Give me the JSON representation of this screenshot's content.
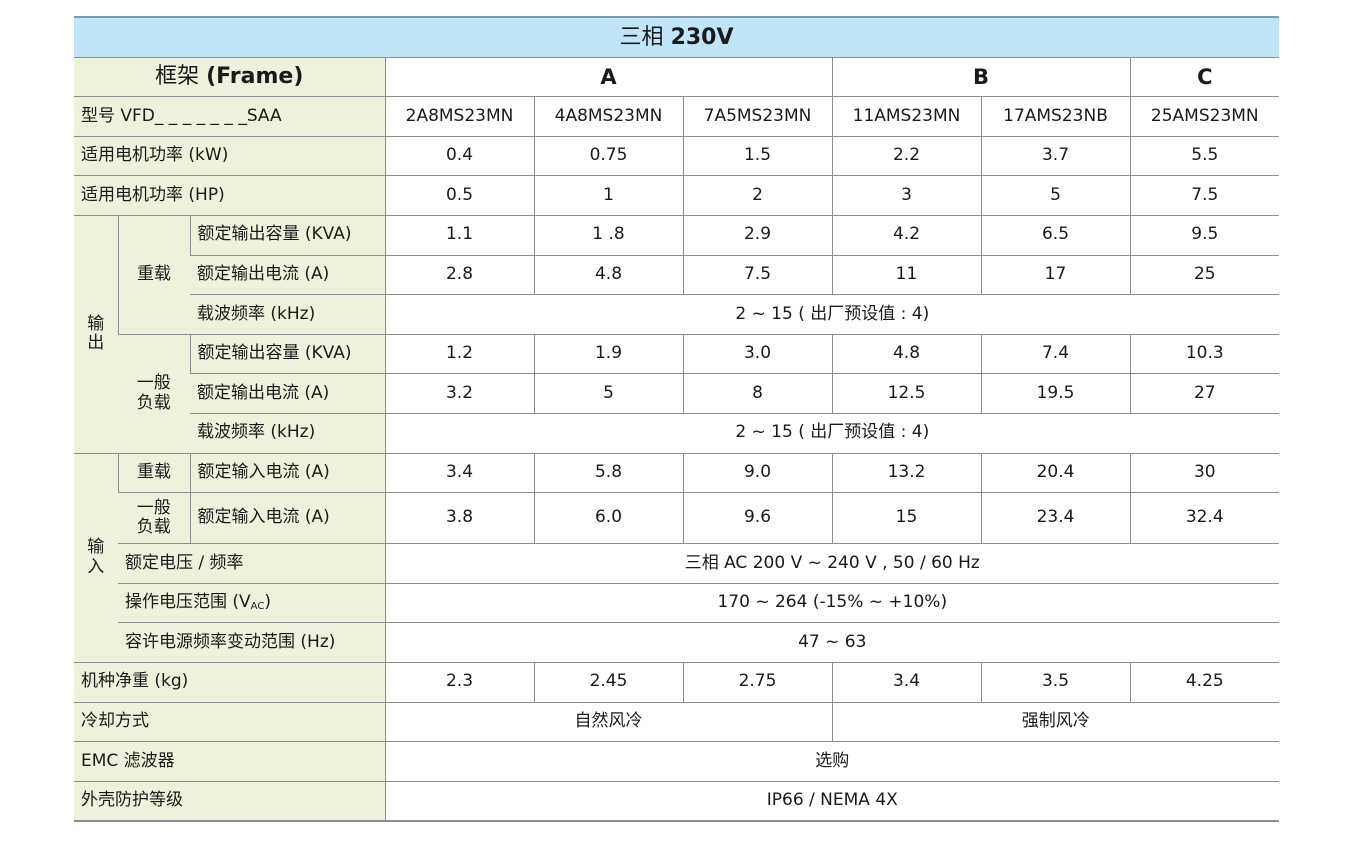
{
  "title": {
    "prefix": "三相",
    "voltage": "230V"
  },
  "frame_row": {
    "label_cn": "框架",
    "label_en": "(Frame)",
    "frames": [
      "A",
      "B",
      "C"
    ]
  },
  "model_row": {
    "label": "型号 VFD_ _ _ _ _ _ _SAA",
    "models": [
      "2A8MS23MN",
      "4A8MS23MN",
      "7A5MS23MN",
      "11AMS23MN",
      "17AMS23NB",
      "25AMS23MN"
    ]
  },
  "motor_kw": {
    "label": "适用电机功率 (kW)",
    "values": [
      "0.4",
      "0.75",
      "1.5",
      "2.2",
      "3.7",
      "5.5"
    ]
  },
  "motor_hp": {
    "label": "适用电机功率 (HP)",
    "values": [
      "0.5",
      "1",
      "2",
      "3",
      "5",
      "7.5"
    ]
  },
  "output": {
    "group_label": "输\n出",
    "heavy": {
      "label": "重载",
      "kva": {
        "label": "额定输出容量 (KVA)",
        "values": [
          "1.1",
          "1 .8",
          "2.9",
          "4.2",
          "6.5",
          "9.5"
        ]
      },
      "current": {
        "label": "额定输出电流 (A)",
        "values": [
          "2.8",
          "4.8",
          "7.5",
          "11",
          "17",
          "25"
        ]
      },
      "carrier": {
        "label": "载波频率 (kHz)",
        "value": "2 ~ 15 ( 出厂预设值 : 4)"
      }
    },
    "normal": {
      "label": "一般\n负载",
      "kva": {
        "label": "额定输出容量 (KVA)",
        "values": [
          "1.2",
          "1.9",
          "3.0",
          "4.8",
          "7.4",
          "10.3"
        ]
      },
      "current": {
        "label": "额定输出电流 (A)",
        "values": [
          "3.2",
          "5",
          "8",
          "12.5",
          "19.5",
          "27"
        ]
      },
      "carrier": {
        "label": "载波频率 (kHz)",
        "value": "2 ~ 15 ( 出厂预设值 : 4)"
      }
    }
  },
  "input": {
    "group_label": "输\n入",
    "heavy": {
      "label": "重载",
      "current_label": "额定输入电流 (A)",
      "values": [
        "3.4",
        "5.8",
        "9.0",
        "13.2",
        "20.4",
        "30"
      ]
    },
    "normal": {
      "label": "一般\n负载",
      "current_label": "额定输入电流 (A)",
      "values": [
        "3.8",
        "6.0",
        "9.6",
        "15",
        "23.4",
        "32.4"
      ]
    },
    "voltage_freq": {
      "label": "额定电压 / 频率",
      "value": "三相 AC 200 V ~ 240 V , 50 / 60 Hz"
    },
    "operating_voltage": {
      "label_main": "操作电压范围 (V",
      "label_sub": "AC",
      "label_end": ")",
      "value": "170 ~ 264 (-15% ~ +10%)"
    },
    "freq_tolerance": {
      "label": "容许电源频率变动范围 (Hz)",
      "value": "47 ~ 63"
    }
  },
  "weight": {
    "label": "机种净重 (kg)",
    "values": [
      "2.3",
      "2.45",
      "2.75",
      "3.4",
      "3.5",
      "4.25"
    ]
  },
  "cooling": {
    "label": "冷却方式",
    "natural": "自然风冷",
    "forced": "强制风冷"
  },
  "emc": {
    "label": "EMC 滤波器",
    "value": "选购"
  },
  "enclosure": {
    "label": "外壳防护等级",
    "value": "IP66 / NEMA 4X"
  }
}
